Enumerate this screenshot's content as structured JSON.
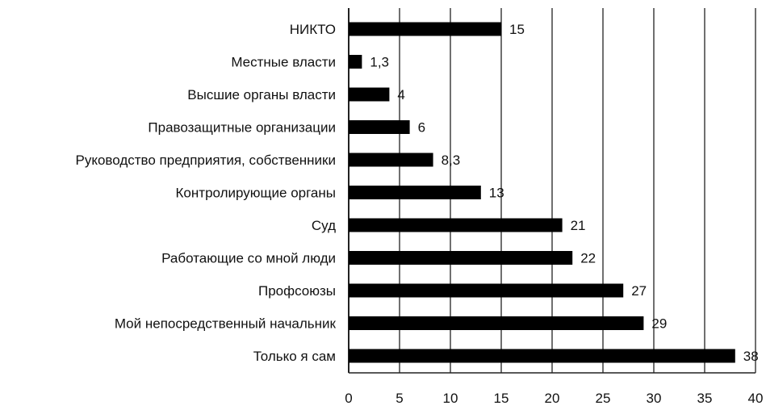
{
  "chart_data": {
    "type": "bar",
    "orientation": "horizontal",
    "categories": [
      "НИКТО",
      "Местные власти",
      "Высшие органы власти",
      "Правозащитные организации",
      "Руководство предприятия, собственники",
      "Контролирующие органы",
      "Суд",
      "Работающие со мной люди",
      "Профсоюзы",
      "Мой непосредственный начальник",
      "Только я сам"
    ],
    "values": [
      15,
      1.3,
      4,
      6,
      8.3,
      13,
      21,
      22,
      27,
      29,
      38
    ],
    "value_labels": [
      "15",
      "1,3",
      "4",
      "6",
      "8,3",
      "13",
      "21",
      "22",
      "27",
      "29",
      "38"
    ],
    "xlim": [
      0,
      40
    ],
    "xticks": [
      0,
      5,
      10,
      15,
      20,
      25,
      30,
      35,
      40
    ],
    "xtick_labels": [
      "0",
      "5",
      "10",
      "15",
      "20",
      "25",
      "30",
      "35",
      "40"
    ],
    "grid": "vertical",
    "legend": "none",
    "bar_color": "#000000",
    "grid_color": "#222222"
  }
}
